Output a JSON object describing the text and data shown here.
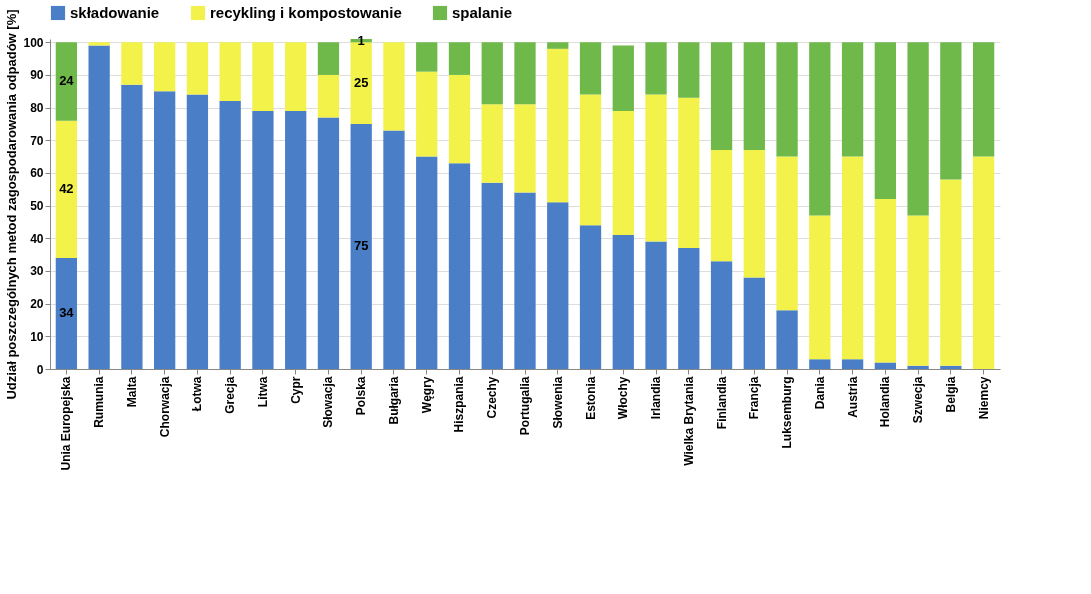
{
  "chart_data": {
    "type": "bar",
    "stacked": true,
    "ylabel": "Udział poszczególnych metod zagospodarowania odpadów [%]",
    "categories": [
      "Unia Europejska",
      "Rumunia",
      "Malta",
      "Chorwacja",
      "Łotwa",
      "Grecja",
      "Litwa",
      "Cypr",
      "Słowacja",
      "Polska",
      "Bułgaria",
      "Węgry",
      "Hiszpania",
      "Czechy",
      "Portugalia",
      "Słowenia",
      "Estonia",
      "Włochy",
      "Irlandia",
      "Wielka Brytania",
      "Finlandia",
      "Francja",
      "Luksemburg",
      "Dania",
      "Austria",
      "Holandia",
      "Szwecja",
      "Belgia",
      "Niemcy"
    ],
    "series": [
      {
        "name": "składowanie",
        "color": "#4a7fc8",
        "values": [
          34,
          99,
          87,
          85,
          84,
          82,
          79,
          79,
          77,
          75,
          73,
          65,
          63,
          57,
          54,
          51,
          44,
          41,
          39,
          37,
          33,
          28,
          18,
          3,
          3,
          2,
          1,
          1,
          0
        ],
        "value_labels": [
          "34",
          null,
          null,
          null,
          null,
          null,
          null,
          null,
          null,
          "75",
          null,
          null,
          null,
          null,
          null,
          null,
          null,
          null,
          null,
          null,
          null,
          null,
          null,
          null,
          null,
          null,
          null,
          null,
          null
        ]
      },
      {
        "name": "recykling i kompostowanie",
        "color": "#f2f24a",
        "values": [
          42,
          1,
          13,
          15,
          16,
          18,
          21,
          21,
          13,
          25,
          27,
          26,
          27,
          24,
          27,
          47,
          40,
          38,
          45,
          46,
          34,
          39,
          47,
          44,
          62,
          50,
          46,
          57,
          65
        ],
        "value_labels": [
          "42",
          null,
          null,
          null,
          null,
          null,
          null,
          null,
          null,
          "25",
          null,
          null,
          null,
          null,
          null,
          null,
          null,
          null,
          null,
          null,
          null,
          null,
          null,
          null,
          null,
          null,
          null,
          null,
          null
        ]
      },
      {
        "name": "spalanie",
        "color": "#6fb84a",
        "values": [
          24,
          0,
          0,
          0,
          0,
          0,
          0,
          0,
          10,
          1,
          0,
          9,
          10,
          19,
          19,
          2,
          16,
          20,
          16,
          17,
          33,
          33,
          35,
          53,
          35,
          48,
          53,
          42,
          35
        ],
        "value_labels": [
          "24",
          null,
          null,
          null,
          null,
          null,
          null,
          null,
          null,
          "1",
          null,
          null,
          null,
          null,
          null,
          null,
          null,
          null,
          null,
          null,
          null,
          null,
          null,
          null,
          null,
          null,
          null,
          null,
          null
        ]
      }
    ],
    "ylim": [
      0,
      101
    ],
    "yticks": [
      0,
      10,
      20,
      30,
      40,
      50,
      60,
      70,
      80,
      90,
      100
    ],
    "grid": "y",
    "legend": "top"
  }
}
